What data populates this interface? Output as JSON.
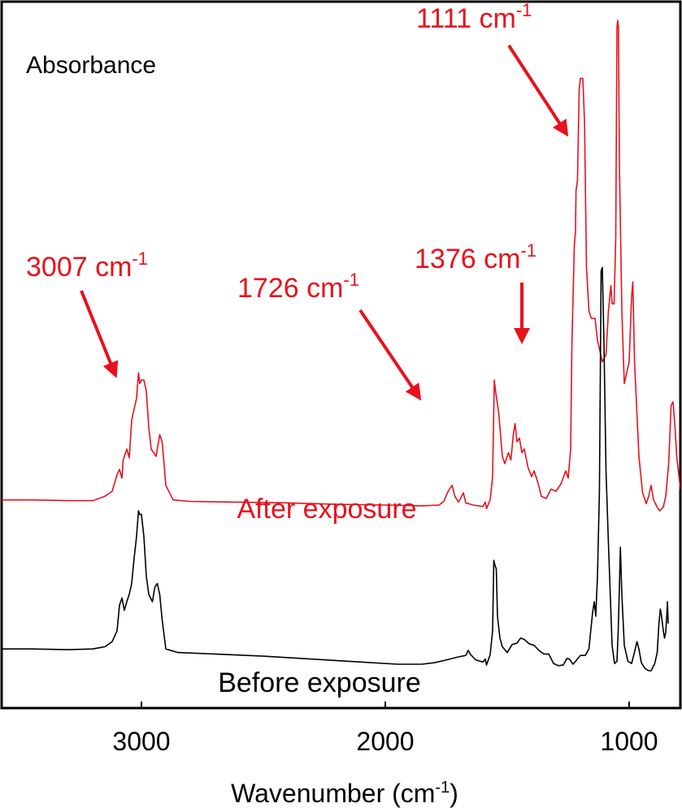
{
  "chart_data": {
    "type": "line",
    "ylabel": "Absorbance",
    "xlabel_main": "Wavenumber (cm",
    "xlabel_sup": "-1",
    "xlabel_tail": ")",
    "xlim": [
      3700,
      700
    ],
    "x_reversed": true,
    "ylim": [
      0,
      1
    ],
    "y_ticks_shown": false,
    "grid": false,
    "x_ticks": [
      {
        "value": 3000,
        "label": "3000"
      },
      {
        "value": 2000,
        "label": "2000"
      },
      {
        "value": 1000,
        "label": "1000"
      }
    ],
    "series": [
      {
        "name": "After exposure",
        "color": "#e8111d",
        "points": [
          [
            3700,
            0.34
          ],
          [
            3450,
            0.34
          ],
          [
            3300,
            0.339
          ],
          [
            3200,
            0.339
          ],
          [
            3150,
            0.345
          ],
          [
            3120,
            0.352
          ],
          [
            3100,
            0.375
          ],
          [
            3090,
            0.382
          ],
          [
            3080,
            0.37
          ],
          [
            3075,
            0.395
          ],
          [
            3060,
            0.41
          ],
          [
            3050,
            0.398
          ],
          [
            3040,
            0.45
          ],
          [
            3030,
            0.465
          ],
          [
            3020,
            0.48
          ],
          [
            3012,
            0.515
          ],
          [
            3007,
            0.5
          ],
          [
            3000,
            0.505
          ],
          [
            2990,
            0.505
          ],
          [
            2980,
            0.49
          ],
          [
            2970,
            0.44
          ],
          [
            2960,
            0.41
          ],
          [
            2940,
            0.4
          ],
          [
            2935,
            0.41
          ],
          [
            2925,
            0.43
          ],
          [
            2915,
            0.42
          ],
          [
            2900,
            0.36
          ],
          [
            2870,
            0.34
          ],
          [
            2800,
            0.338
          ],
          [
            2600,
            0.337
          ],
          [
            2400,
            0.336
          ],
          [
            2200,
            0.334
          ],
          [
            2000,
            0.333
          ],
          [
            1850,
            0.332
          ],
          [
            1780,
            0.333
          ],
          [
            1760,
            0.338
          ],
          [
            1745,
            0.35
          ],
          [
            1735,
            0.356
          ],
          [
            1726,
            0.36
          ],
          [
            1715,
            0.345
          ],
          [
            1700,
            0.337
          ],
          [
            1690,
            0.343
          ],
          [
            1680,
            0.35
          ],
          [
            1670,
            0.336
          ],
          [
            1640,
            0.333
          ],
          [
            1600,
            0.331
          ],
          [
            1590,
            0.337
          ],
          [
            1585,
            0.328
          ],
          [
            1570,
            0.34
          ],
          [
            1560,
            0.372
          ],
          [
            1553,
            0.505
          ],
          [
            1548,
            0.49
          ],
          [
            1535,
            0.46
          ],
          [
            1520,
            0.4
          ],
          [
            1510,
            0.39
          ],
          [
            1495,
            0.405
          ],
          [
            1485,
            0.395
          ],
          [
            1475,
            0.43
          ],
          [
            1468,
            0.445
          ],
          [
            1460,
            0.42
          ],
          [
            1450,
            0.425
          ],
          [
            1440,
            0.405
          ],
          [
            1430,
            0.41
          ],
          [
            1415,
            0.385
          ],
          [
            1400,
            0.372
          ],
          [
            1390,
            0.38
          ],
          [
            1376,
            0.366
          ],
          [
            1360,
            0.345
          ],
          [
            1340,
            0.342
          ],
          [
            1320,
            0.355
          ],
          [
            1300,
            0.352
          ],
          [
            1280,
            0.362
          ],
          [
            1260,
            0.38
          ],
          [
            1250,
            0.37
          ],
          [
            1240,
            0.41
          ],
          [
            1235,
            0.55
          ],
          [
            1225,
            0.69
          ],
          [
            1220,
            0.71
          ],
          [
            1218,
            0.765
          ],
          [
            1212,
            0.78
          ],
          [
            1205,
            0.905
          ],
          [
            1200,
            0.92
          ],
          [
            1190,
            0.92
          ],
          [
            1183,
            0.86
          ],
          [
            1175,
            0.66
          ],
          [
            1165,
            0.6
          ],
          [
            1155,
            0.59
          ],
          [
            1140,
            0.59
          ],
          [
            1130,
            0.56
          ],
          [
            1110,
            0.53
          ],
          [
            1095,
            0.54
          ],
          [
            1085,
            0.6
          ],
          [
            1075,
            0.635
          ],
          [
            1070,
            0.61
          ],
          [
            1062,
            0.61
          ],
          [
            1055,
            0.7
          ],
          [
            1050,
            0.99
          ],
          [
            1047,
            1.0
          ],
          [
            1044,
            0.99
          ],
          [
            1040,
            0.8
          ],
          [
            1030,
            0.6
          ],
          [
            1020,
            0.5
          ],
          [
            1000,
            0.53
          ],
          [
            990,
            0.62
          ],
          [
            985,
            0.64
          ],
          [
            978,
            0.53
          ],
          [
            960,
            0.4
          ],
          [
            945,
            0.35
          ],
          [
            930,
            0.335
          ],
          [
            920,
            0.345
          ],
          [
            910,
            0.36
          ],
          [
            900,
            0.34
          ],
          [
            885,
            0.33
          ],
          [
            875,
            0.325
          ],
          [
            860,
            0.33
          ],
          [
            850,
            0.345
          ],
          [
            838,
            0.39
          ],
          [
            828,
            0.47
          ],
          [
            820,
            0.475
          ],
          [
            812,
            0.44
          ],
          [
            805,
            0.4
          ],
          [
            795,
            0.37
          ],
          [
            790,
            0.355
          ],
          [
            783,
            0.38
          ],
          [
            776,
            0.46
          ],
          [
            770,
            0.56
          ],
          [
            765,
            0.64
          ],
          [
            762,
            0.63
          ]
        ]
      },
      {
        "name": "Before exposure",
        "color": "#000000",
        "points": [
          [
            3700,
            0.135
          ],
          [
            3450,
            0.135
          ],
          [
            3300,
            0.134
          ],
          [
            3200,
            0.135
          ],
          [
            3150,
            0.138
          ],
          [
            3120,
            0.145
          ],
          [
            3100,
            0.16
          ],
          [
            3090,
            0.195
          ],
          [
            3080,
            0.205
          ],
          [
            3070,
            0.188
          ],
          [
            3060,
            0.2
          ],
          [
            3050,
            0.21
          ],
          [
            3040,
            0.225
          ],
          [
            3030,
            0.26
          ],
          [
            3020,
            0.29
          ],
          [
            3012,
            0.325
          ],
          [
            3007,
            0.32
          ],
          [
            3000,
            0.32
          ],
          [
            2990,
            0.29
          ],
          [
            2980,
            0.235
          ],
          [
            2970,
            0.21
          ],
          [
            2955,
            0.2
          ],
          [
            2945,
            0.22
          ],
          [
            2935,
            0.225
          ],
          [
            2925,
            0.21
          ],
          [
            2915,
            0.175
          ],
          [
            2900,
            0.135
          ],
          [
            2850,
            0.13
          ],
          [
            2700,
            0.128
          ],
          [
            2500,
            0.125
          ],
          [
            2300,
            0.121
          ],
          [
            2100,
            0.117
          ],
          [
            1950,
            0.114
          ],
          [
            1850,
            0.114
          ],
          [
            1800,
            0.116
          ],
          [
            1760,
            0.119
          ],
          [
            1700,
            0.124
          ],
          [
            1670,
            0.126
          ],
          [
            1660,
            0.133
          ],
          [
            1652,
            0.128
          ],
          [
            1630,
            0.12
          ],
          [
            1600,
            0.117
          ],
          [
            1590,
            0.121
          ],
          [
            1585,
            0.113
          ],
          [
            1570,
            0.127
          ],
          [
            1560,
            0.16
          ],
          [
            1555,
            0.257
          ],
          [
            1550,
            0.25
          ],
          [
            1545,
            0.245
          ],
          [
            1540,
            0.18
          ],
          [
            1530,
            0.15
          ],
          [
            1520,
            0.138
          ],
          [
            1500,
            0.13
          ],
          [
            1480,
            0.141
          ],
          [
            1460,
            0.143
          ],
          [
            1445,
            0.15
          ],
          [
            1430,
            0.148
          ],
          [
            1410,
            0.142
          ],
          [
            1390,
            0.14
          ],
          [
            1370,
            0.133
          ],
          [
            1350,
            0.128
          ],
          [
            1330,
            0.128
          ],
          [
            1310,
            0.115
          ],
          [
            1290,
            0.112
          ],
          [
            1270,
            0.113
          ],
          [
            1255,
            0.122
          ],
          [
            1245,
            0.121
          ],
          [
            1230,
            0.114
          ],
          [
            1215,
            0.12
          ],
          [
            1200,
            0.126
          ],
          [
            1180,
            0.126
          ],
          [
            1165,
            0.135
          ],
          [
            1150,
            0.185
          ],
          [
            1143,
            0.2
          ],
          [
            1137,
            0.18
          ],
          [
            1130,
            0.235
          ],
          [
            1122,
            0.35
          ],
          [
            1115,
            0.655
          ],
          [
            1110,
            0.66
          ],
          [
            1103,
            0.55
          ],
          [
            1095,
            0.38
          ],
          [
            1085,
            0.28
          ],
          [
            1070,
            0.14
          ],
          [
            1060,
            0.115
          ],
          [
            1050,
            0.118
          ],
          [
            1045,
            0.16
          ],
          [
            1040,
            0.22
          ],
          [
            1036,
            0.275
          ],
          [
            1030,
            0.21
          ],
          [
            1020,
            0.14
          ],
          [
            1005,
            0.118
          ],
          [
            990,
            0.115
          ],
          [
            975,
            0.135
          ],
          [
            968,
            0.145
          ],
          [
            960,
            0.135
          ],
          [
            950,
            0.116
          ],
          [
            935,
            0.108
          ],
          [
            920,
            0.105
          ],
          [
            910,
            0.105
          ],
          [
            895,
            0.115
          ],
          [
            885,
            0.13
          ],
          [
            878,
            0.17
          ],
          [
            872,
            0.19
          ],
          [
            868,
            0.182
          ],
          [
            860,
            0.16
          ],
          [
            855,
            0.15
          ],
          [
            850,
            0.158
          ],
          [
            846,
            0.18
          ],
          [
            843,
            0.2
          ],
          [
            840,
            0.17
          ]
        ]
      }
    ],
    "annotations": [
      {
        "text": "3007 cm",
        "sup": "-1",
        "x": 3007
      },
      {
        "text": "1726 cm",
        "sup": "-1",
        "x": 1726
      },
      {
        "text": "1376 cm",
        "sup": "-1",
        "x": 1376
      },
      {
        "text": "1111 cm",
        "sup": "-1",
        "x": 1111
      }
    ],
    "annotation_color": "#e8111d"
  }
}
